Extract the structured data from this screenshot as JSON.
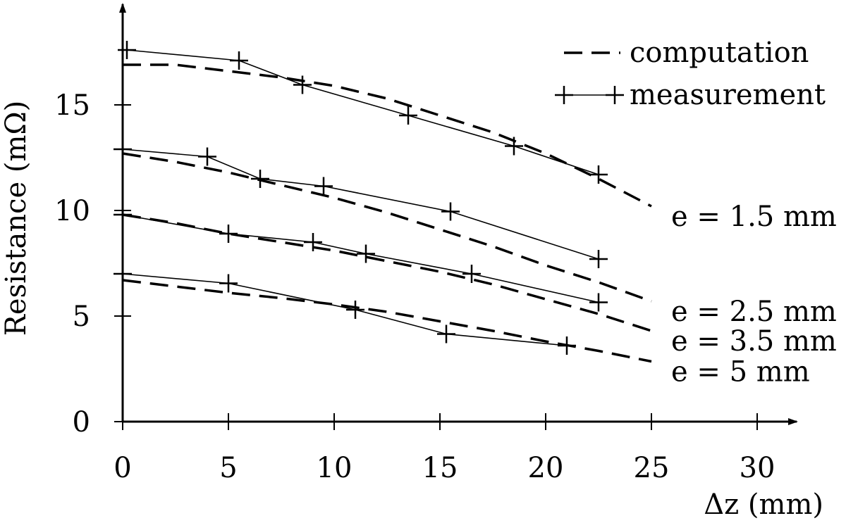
{
  "chart_data": {
    "type": "line",
    "xlabel": "Δz (mm)",
    "ylabel": "Resistance (mΩ)",
    "xlim": [
      0,
      30
    ],
    "ylim": [
      0,
      17.5
    ],
    "xticks": [
      0,
      5,
      10,
      15,
      20,
      25,
      30
    ],
    "yticks": [
      0,
      5,
      10,
      15
    ],
    "xtick_labels": [
      "0",
      "5",
      "10",
      "15",
      "20",
      "25",
      "30"
    ],
    "ytick_labels": [
      "0",
      "5",
      "10",
      "15"
    ],
    "grid": false,
    "legend_position": "top-right",
    "legend": [
      {
        "label": "computation",
        "style": "dashed"
      },
      {
        "label": "measurement",
        "style": "solid-with-plus-markers"
      }
    ],
    "series": [
      {
        "label": "e = 1.5 mm",
        "computation": {
          "x": [
            0,
            2.5,
            5,
            7.5,
            10,
            12.5,
            15,
            17.5,
            20,
            22.5,
            25
          ],
          "y": [
            16.9,
            16.9,
            16.6,
            16.3,
            15.9,
            15.3,
            14.5,
            13.7,
            12.7,
            11.5,
            10.2
          ]
        },
        "measurement": {
          "x": [
            0.2,
            5.5,
            8.5,
            13.5,
            18.5,
            22.5
          ],
          "y": [
            17.6,
            17.1,
            15.95,
            14.5,
            13.05,
            11.7
          ]
        }
      },
      {
        "label": "e = 2.5 mm",
        "computation": {
          "x": [
            0,
            2.5,
            5,
            7.5,
            10,
            12.5,
            15,
            17.5,
            20,
            22.5,
            25
          ],
          "y": [
            12.7,
            12.3,
            11.8,
            11.2,
            10.6,
            9.9,
            9.1,
            8.3,
            7.4,
            6.6,
            5.7
          ]
        },
        "measurement": {
          "x": [
            0,
            4,
            6.5,
            9.5,
            15.5,
            22.5
          ],
          "y": [
            12.9,
            12.55,
            11.5,
            11.15,
            9.95,
            7.7
          ]
        }
      },
      {
        "label": "e = 3.5 mm",
        "computation": {
          "x": [
            0,
            2.5,
            5,
            7.5,
            10,
            12.5,
            15,
            17.5,
            20,
            22.5,
            25
          ],
          "y": [
            9.8,
            9.4,
            8.9,
            8.5,
            8.1,
            7.6,
            7.1,
            6.5,
            5.8,
            5.1,
            4.3
          ]
        },
        "measurement": {
          "x": [
            0,
            5,
            9,
            11.5,
            16.5,
            22.5
          ],
          "y": [
            9.8,
            8.9,
            8.5,
            7.95,
            7.0,
            5.65
          ]
        }
      },
      {
        "label": "e = 5 mm",
        "computation": {
          "x": [
            0,
            2.5,
            5,
            7.5,
            10,
            12.5,
            15,
            17.5,
            20,
            22.5,
            25
          ],
          "y": [
            6.7,
            6.4,
            6.1,
            5.85,
            5.55,
            5.2,
            4.75,
            4.3,
            3.8,
            3.35,
            2.85
          ]
        },
        "measurement": {
          "x": [
            0,
            5,
            11,
            15.3,
            21
          ],
          "y": [
            7.0,
            6.55,
            5.3,
            4.15,
            3.6
          ]
        }
      }
    ]
  }
}
